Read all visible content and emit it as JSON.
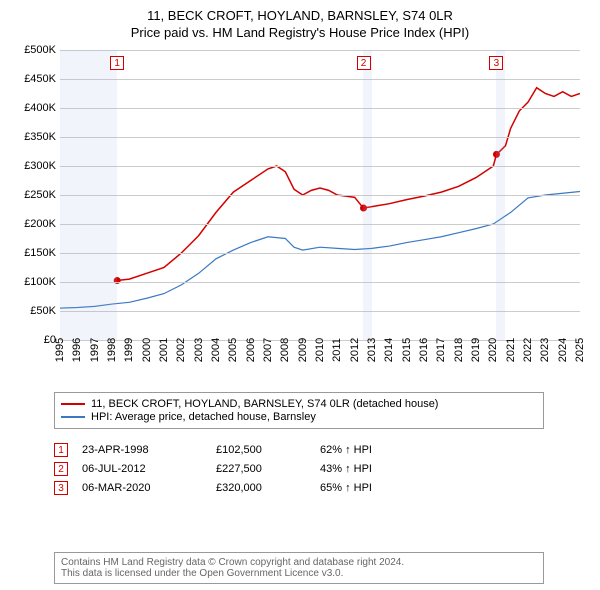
{
  "title_line1": "11, BECK CROFT, HOYLAND, BARNSLEY, S74 0LR",
  "title_line2": "Price paid vs. HM Land Registry's House Price Index (HPI)",
  "chart": {
    "type": "line",
    "background_color": "#ffffff",
    "grid_color": "#cccccc",
    "ylim": [
      0,
      500000
    ],
    "ytick_step": 50000,
    "yticks": [
      "£0",
      "£50K",
      "£100K",
      "£150K",
      "£200K",
      "£250K",
      "£300K",
      "£350K",
      "£400K",
      "£450K",
      "£500K"
    ],
    "xlim": [
      1995,
      2025
    ],
    "xticks": [
      1995,
      1996,
      1997,
      1998,
      1999,
      2000,
      2001,
      2002,
      2003,
      2004,
      2005,
      2006,
      2007,
      2008,
      2009,
      2010,
      2011,
      2012,
      2013,
      2014,
      2015,
      2016,
      2017,
      2018,
      2019,
      2020,
      2021,
      2022,
      2023,
      2024,
      2025
    ],
    "bands": [
      {
        "start": 1995,
        "end": 1998.3
      },
      {
        "start": 2012.5,
        "end": 2013.0
      },
      {
        "start": 2020.18,
        "end": 2020.7
      }
    ],
    "series": [
      {
        "name": "property",
        "label": "11, BECK CROFT, HOYLAND, BARNSLEY, S74 0LR (detached house)",
        "color": "#d40000",
        "line_width": 1.5,
        "points": [
          [
            1998.3,
            102500
          ],
          [
            1999,
            105000
          ],
          [
            2000,
            115000
          ],
          [
            2001,
            125000
          ],
          [
            2002,
            150000
          ],
          [
            2003,
            180000
          ],
          [
            2004,
            220000
          ],
          [
            2005,
            255000
          ],
          [
            2006,
            275000
          ],
          [
            2007,
            295000
          ],
          [
            2007.5,
            300000
          ],
          [
            2008,
            290000
          ],
          [
            2008.5,
            260000
          ],
          [
            2009,
            250000
          ],
          [
            2009.5,
            258000
          ],
          [
            2010,
            262000
          ],
          [
            2010.5,
            258000
          ],
          [
            2011,
            250000
          ],
          [
            2011.5,
            248000
          ],
          [
            2012,
            246000
          ],
          [
            2012.5,
            227500
          ],
          [
            2012.51,
            227500
          ],
          [
            2013,
            230000
          ],
          [
            2014,
            235000
          ],
          [
            2015,
            242000
          ],
          [
            2016,
            248000
          ],
          [
            2017,
            255000
          ],
          [
            2018,
            265000
          ],
          [
            2019,
            280000
          ],
          [
            2020,
            300000
          ],
          [
            2020.18,
            320000
          ],
          [
            2020.19,
            320000
          ],
          [
            2020.7,
            335000
          ],
          [
            2021,
            365000
          ],
          [
            2021.5,
            395000
          ],
          [
            2022,
            410000
          ],
          [
            2022.5,
            435000
          ],
          [
            2023,
            425000
          ],
          [
            2023.5,
            420000
          ],
          [
            2024,
            428000
          ],
          [
            2024.5,
            420000
          ],
          [
            2025,
            425000
          ]
        ],
        "markers": [
          {
            "num": "1",
            "x": 1998.3,
            "y": 102500
          },
          {
            "num": "2",
            "x": 2012.51,
            "y": 227500
          },
          {
            "num": "3",
            "x": 2020.18,
            "y": 320000
          }
        ]
      },
      {
        "name": "hpi",
        "label": "HPI: Average price, detached house, Barnsley",
        "color": "#3b78c4",
        "line_width": 1.2,
        "points": [
          [
            1995,
            55000
          ],
          [
            1996,
            56000
          ],
          [
            1997,
            58000
          ],
          [
            1998,
            62000
          ],
          [
            1999,
            65000
          ],
          [
            2000,
            72000
          ],
          [
            2001,
            80000
          ],
          [
            2002,
            95000
          ],
          [
            2003,
            115000
          ],
          [
            2004,
            140000
          ],
          [
            2005,
            155000
          ],
          [
            2006,
            168000
          ],
          [
            2007,
            178000
          ],
          [
            2008,
            175000
          ],
          [
            2008.5,
            160000
          ],
          [
            2009,
            155000
          ],
          [
            2010,
            160000
          ],
          [
            2011,
            158000
          ],
          [
            2012,
            156000
          ],
          [
            2013,
            158000
          ],
          [
            2014,
            162000
          ],
          [
            2015,
            168000
          ],
          [
            2016,
            173000
          ],
          [
            2017,
            178000
          ],
          [
            2018,
            185000
          ],
          [
            2019,
            192000
          ],
          [
            2020,
            200000
          ],
          [
            2021,
            220000
          ],
          [
            2022,
            245000
          ],
          [
            2023,
            250000
          ],
          [
            2024,
            253000
          ],
          [
            2025,
            256000
          ]
        ]
      }
    ],
    "marker_box_color": "#d40000"
  },
  "legend": {
    "rows": [
      {
        "color": "#d40000",
        "label": "11, BECK CROFT, HOYLAND, BARNSLEY, S74 0LR (detached house)"
      },
      {
        "color": "#3b78c4",
        "label": "HPI: Average price, detached house, Barnsley"
      }
    ]
  },
  "sales": [
    {
      "num": "1",
      "color": "#d40000",
      "date": "23-APR-1998",
      "price": "£102,500",
      "hpi": "62% ↑ HPI"
    },
    {
      "num": "2",
      "color": "#d40000",
      "date": "06-JUL-2012",
      "price": "£227,500",
      "hpi": "43% ↑ HPI"
    },
    {
      "num": "3",
      "color": "#d40000",
      "date": "06-MAR-2020",
      "price": "£320,000",
      "hpi": "65% ↑ HPI"
    }
  ],
  "footer_line1": "Contains HM Land Registry data © Crown copyright and database right 2024.",
  "footer_line2": "This data is licensed under the Open Government Licence v3.0."
}
